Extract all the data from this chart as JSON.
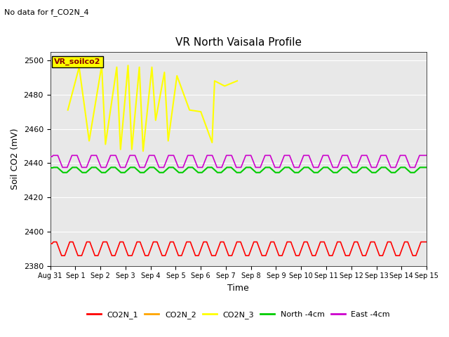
{
  "title": "VR North Vaisala Profile",
  "subtitle": "No data for f_CO2N_4",
  "xlabel": "Time",
  "ylabel": "Soil CO2 (mV)",
  "ylim": [
    2380,
    2505
  ],
  "xlim": [
    0,
    15
  ],
  "xtick_labels": [
    "Aug 31",
    "Sep 1",
    "Sep 2",
    "Sep 3",
    "Sep 4",
    "Sep 5",
    "Sep 6",
    "Sep 7",
    "Sep 8",
    "Sep 9",
    "Sep 10",
    "Sep 11",
    "Sep 12",
    "Sep 13",
    "Sep 14",
    "Sep 15"
  ],
  "yticks": [
    2380,
    2400,
    2420,
    2440,
    2460,
    2480,
    2500
  ],
  "background_color": "#e8e8e8",
  "plot_bg_color": "#e8e8e8",
  "legend_label": "VR_soilco2",
  "legend_box_color": "#ffff00",
  "legend_box_text_color": "#8b0000",
  "co2n1_color": "#ff0000",
  "co2n2_color": "#ffa500",
  "co2n3_color": "#ffff00",
  "north_color": "#00cc00",
  "east_color": "#cc00cc",
  "co2n1_label": "CO2N_1",
  "co2n2_label": "CO2N_2",
  "co2n3_label": "CO2N_3",
  "north_label": "North -4cm",
  "east_label": "East -4cm",
  "co2n3_x": [
    0.7,
    1.15,
    1.55,
    2.05,
    2.2,
    2.65,
    2.8,
    3.1,
    3.25,
    3.55,
    3.7,
    4.05,
    4.2,
    4.55,
    4.7,
    5.05,
    5.55,
    6.0,
    6.45,
    6.55,
    6.95,
    7.45
  ],
  "co2n3_y": [
    2471,
    2496,
    2453,
    2497,
    2451,
    2496,
    2448,
    2497,
    2448,
    2496,
    2447,
    2496,
    2465,
    2493,
    2453,
    2491,
    2471,
    2470,
    2452,
    2488,
    2485,
    2488
  ],
  "north_base": 2436,
  "east_base": 2441,
  "co2n1_base": 2390
}
